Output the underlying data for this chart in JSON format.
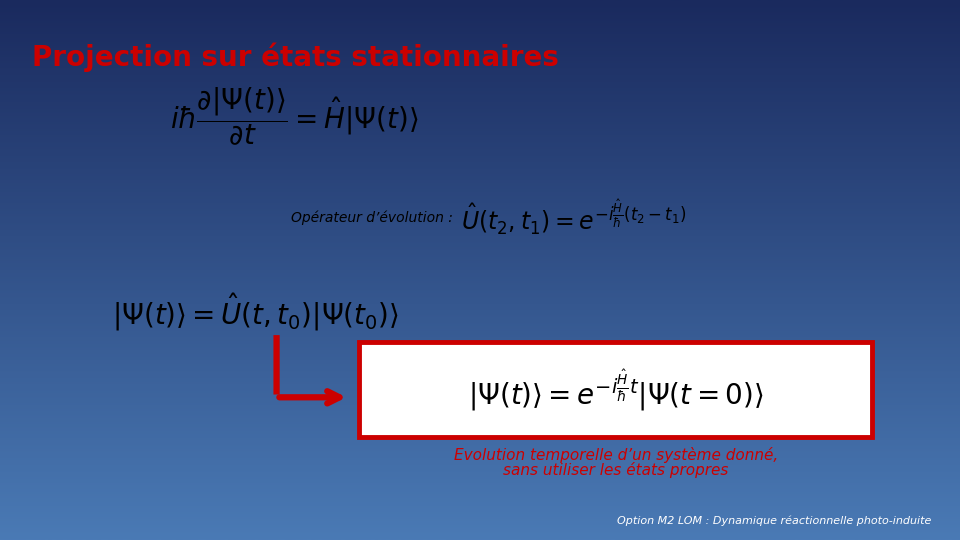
{
  "title": "Projection sur états stationnaires",
  "title_color": "#CC0000",
  "title_fontsize": 20,
  "bg_color": "#FFFFFF",
  "top_bg": "#1a3a6b",
  "bottom_bg_gradient": true,
  "eq1_fontsize": 17,
  "eq2_fontsize": 15,
  "eq3_fontsize": 17,
  "eq4_fontsize": 17,
  "label_fontsize": 10,
  "caption_fontsize": 11,
  "footer_fontsize": 8,
  "text_color": "#000000",
  "caption_color": "#CC0000",
  "box_color": "#CC0000",
  "arrow_color": "#CC0000",
  "footer_color": "#FFFFFF",
  "footer": "Option M2 LOM : Dynamique réactionnelle photo-induite",
  "caption_line1": "Evolution temporelle d’un système donné,",
  "caption_line2": "sans utiliser les états propres",
  "label_operateur": "Opérateur d’évolution : "
}
